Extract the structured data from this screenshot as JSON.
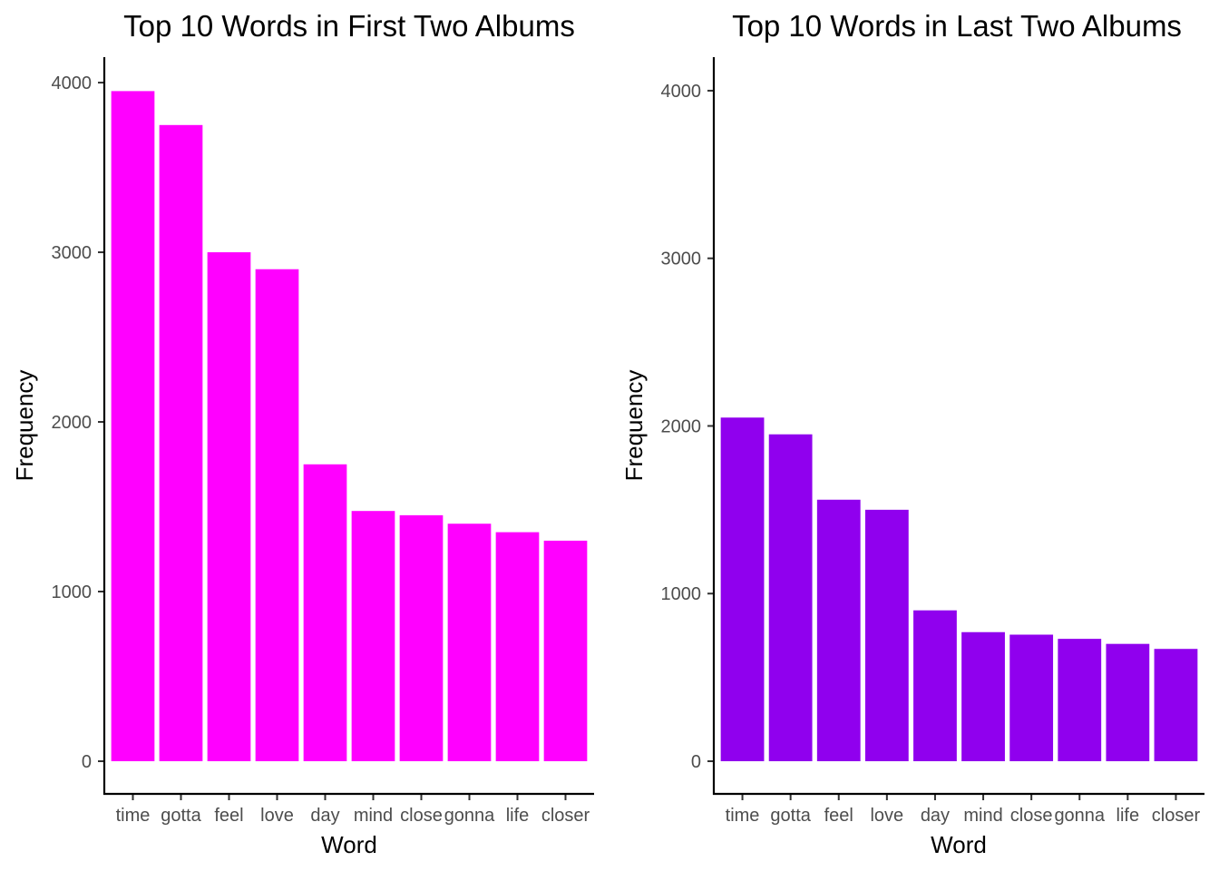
{
  "chart_data": [
    {
      "type": "bar",
      "title": "Top 10 Words in First Two Albums",
      "xlabel": "Word",
      "ylabel": "Frequency",
      "categories": [
        "time",
        "gotta",
        "feel",
        "love",
        "day",
        "mind",
        "close",
        "gonna",
        "life",
        "closer"
      ],
      "values": [
        3950,
        3750,
        3000,
        2900,
        1750,
        1475,
        1450,
        1400,
        1350,
        1300
      ],
      "yticks": [
        0,
        1000,
        2000,
        3000,
        4000
      ],
      "ylim": [
        0,
        4150
      ],
      "bar_color": "#FF00FF",
      "grid": false,
      "legend": "none"
    },
    {
      "type": "bar",
      "title": "Top 10 Words in Last Two Albums",
      "xlabel": "Word",
      "ylabel": "Frequency",
      "categories": [
        "time",
        "gotta",
        "feel",
        "love",
        "day",
        "mind",
        "close",
        "gonna",
        "life",
        "closer"
      ],
      "values": [
        2050,
        1950,
        1560,
        1500,
        900,
        770,
        755,
        730,
        700,
        670
      ],
      "yticks": [
        0,
        1000,
        2000,
        3000,
        4000
      ],
      "ylim": [
        0,
        4200
      ],
      "bar_color": "#9000EE",
      "grid": false,
      "legend": "none"
    }
  ]
}
